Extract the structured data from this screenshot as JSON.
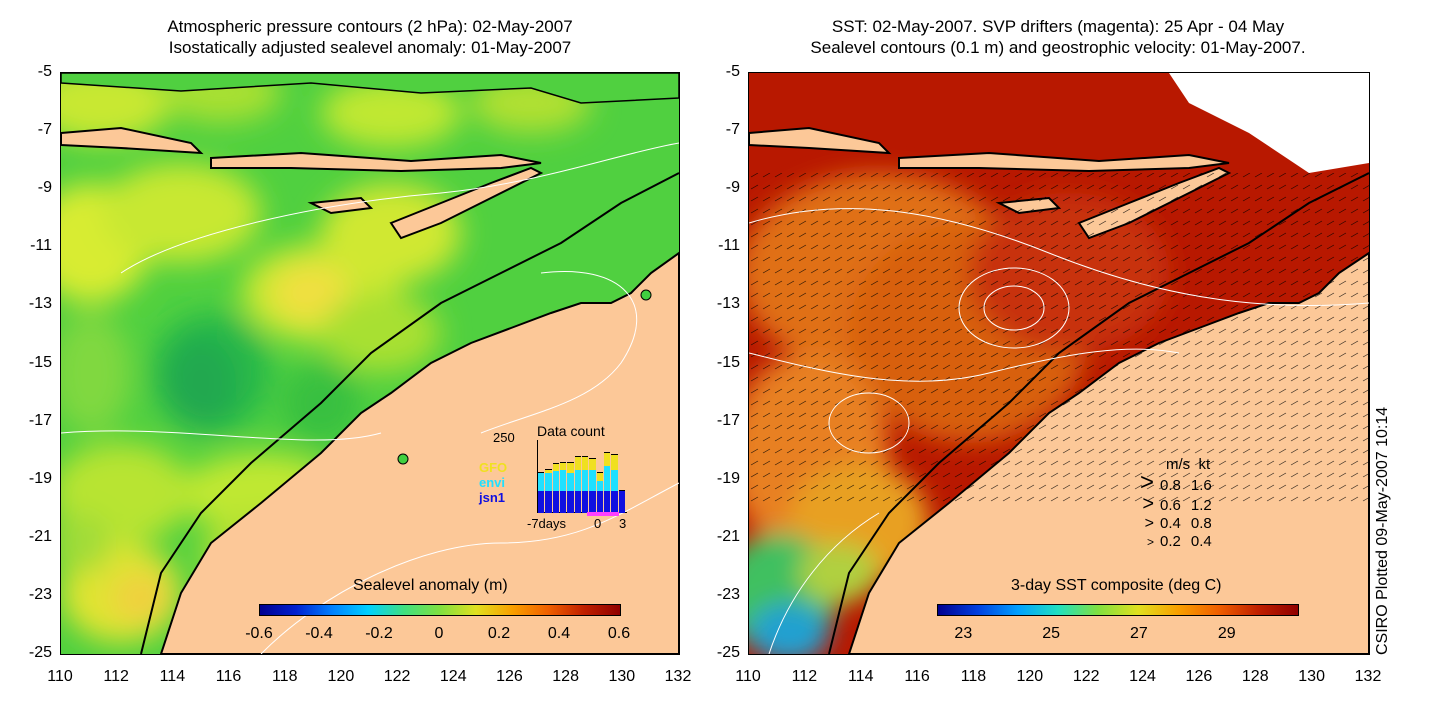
{
  "left": {
    "title_line1": "Atmospheric pressure contours (2 hPa): 02-May-2007",
    "title_line2": "Isostatically adjusted sealevel anomaly: 01-May-2007",
    "colorbar_title": "Sealevel anomaly (m)",
    "colorbar_ticks": [
      "-0.6",
      "-0.4",
      "-0.2",
      "0",
      "0.2",
      "0.4",
      "0.6"
    ],
    "inset": {
      "title": "Data count",
      "ymax_label": "250",
      "x_labels": [
        "-7days",
        "0",
        "3"
      ],
      "legend": [
        {
          "label": "GFO",
          "color": "#f0e020"
        },
        {
          "label": "envi",
          "color": "#20e0ff"
        },
        {
          "label": "jsn1",
          "color": "#1010e0"
        }
      ],
      "bars": [
        {
          "jsn1": 0.3,
          "envi": 0.25,
          "gfo": 0.0
        },
        {
          "jsn1": 0.3,
          "envi": 0.25,
          "gfo": 0.05
        },
        {
          "jsn1": 0.3,
          "envi": 0.28,
          "gfo": 0.1
        },
        {
          "jsn1": 0.3,
          "envi": 0.3,
          "gfo": 0.1
        },
        {
          "jsn1": 0.3,
          "envi": 0.25,
          "gfo": 0.15
        },
        {
          "jsn1": 0.3,
          "envi": 0.3,
          "gfo": 0.18
        },
        {
          "jsn1": 0.3,
          "envi": 0.3,
          "gfo": 0.18
        },
        {
          "jsn1": 0.3,
          "envi": 0.3,
          "gfo": 0.15
        },
        {
          "jsn1": 0.3,
          "envi": 0.15,
          "gfo": 0.1
        },
        {
          "jsn1": 0.3,
          "envi": 0.35,
          "gfo": 0.18
        },
        {
          "jsn1": 0.3,
          "envi": 0.3,
          "gfo": 0.2
        },
        {
          "jsn1": 0.3,
          "envi": 0.0,
          "gfo": 0.0
        }
      ]
    }
  },
  "right": {
    "title_line1": "SST: 02-May-2007. SVP drifters (magenta): 25 Apr - 04 May",
    "title_line2": "Sealevel contours (0.1 m) and geostrophic velocity: 01-May-2007.",
    "colorbar_title": "3-day SST composite (deg C)",
    "colorbar_ticks": [
      "23",
      "25",
      "27",
      "29"
    ],
    "velocity_legend": {
      "header_ms": "m/s",
      "header_kt": "kt",
      "rows": [
        {
          "ms": "0.8",
          "kt": "1.6"
        },
        {
          "ms": "0.6",
          "kt": "1.2"
        },
        {
          "ms": "0.4",
          "kt": "0.8"
        },
        {
          "ms": "0.2",
          "kt": "0.4"
        }
      ]
    }
  },
  "axes": {
    "lat_ticks": [
      "-5",
      "-7",
      "-9",
      "-11",
      "-13",
      "-15",
      "-17",
      "-19",
      "-21",
      "-23",
      "-25"
    ],
    "lon_ticks": [
      "110",
      "112",
      "114",
      "116",
      "118",
      "120",
      "122",
      "124",
      "126",
      "128",
      "130",
      "132"
    ]
  },
  "plotted_note": "CSIRO Plotted 09-May-2007 10:14",
  "colors": {
    "land": "#fcc898",
    "sla_base": "#40d840",
    "sst_warm": "#b01800",
    "sst_mid": "#d85a10",
    "coast": "#000000"
  }
}
